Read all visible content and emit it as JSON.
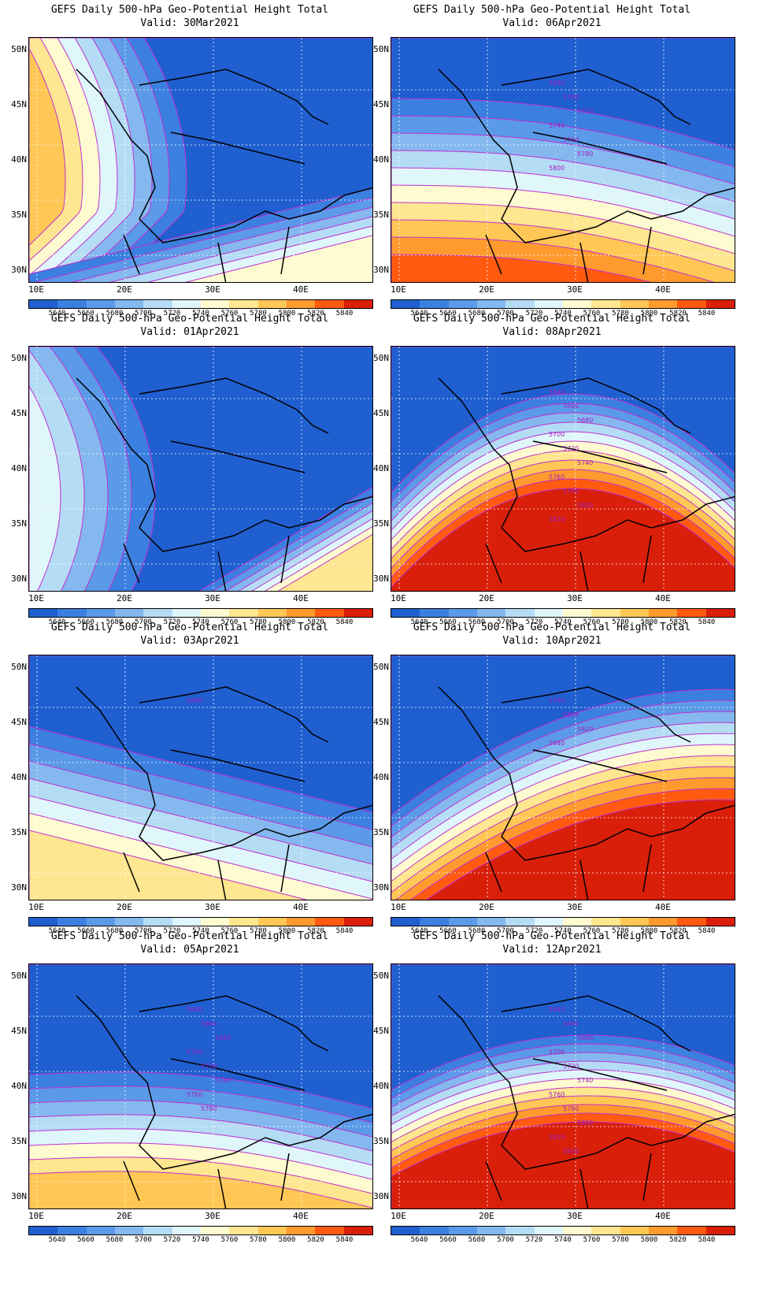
{
  "title_line1": "GEFS Daily 500-hPa Geo-Potential Height Total",
  "lat_labels": [
    "50N",
    "45N",
    "40N",
    "35N",
    "30N"
  ],
  "lon_labels": [
    "10E",
    "20E",
    "30E",
    "40E"
  ],
  "colorbar": {
    "levels": [
      "5640",
      "5660",
      "5680",
      "5700",
      "5720",
      "5740",
      "5760",
      "5780",
      "5800",
      "5820",
      "5840"
    ],
    "colors": [
      "#1f5fd0",
      "#3b7fe0",
      "#5b9ae8",
      "#84b8ef",
      "#b5dcf5",
      "#dff6fb",
      "#fffbd0",
      "#ffe690",
      "#ffc755",
      "#ff9a2e",
      "#ff5a10",
      "#d91f0a"
    ]
  },
  "panels": [
    {
      "valid": "Valid: 30Mar2021",
      "contour_labels": []
    },
    {
      "valid": "Valid: 06Apr2021",
      "contour_labels": [
        "5680",
        "5700",
        "5720",
        "5740",
        "5760",
        "5780",
        "5800"
      ]
    },
    {
      "valid": "Valid: 01Apr2021",
      "contour_labels": []
    },
    {
      "valid": "Valid: 08Apr2021",
      "contour_labels": [
        "5640",
        "5660",
        "5680",
        "5700",
        "5720",
        "5740",
        "5760",
        "5780",
        "5800",
        "5820"
      ]
    },
    {
      "valid": "Valid: 03Apr2021",
      "contour_labels": [
        "5680"
      ]
    },
    {
      "valid": "Valid: 10Apr2021",
      "contour_labels": [
        "5780",
        "5800",
        "5820",
        "5840"
      ]
    },
    {
      "valid": "Valid: 05Apr2021",
      "contour_labels": [
        "5640",
        "5660",
        "5680",
        "5700",
        "5720",
        "5740",
        "5760",
        "5780"
      ]
    },
    {
      "valid": "Valid: 12Apr2021",
      "contour_labels": [
        "5640",
        "5660",
        "5680",
        "5700",
        "5720",
        "5740",
        "5760",
        "5780",
        "5800",
        "5820",
        "5840"
      ]
    }
  ]
}
